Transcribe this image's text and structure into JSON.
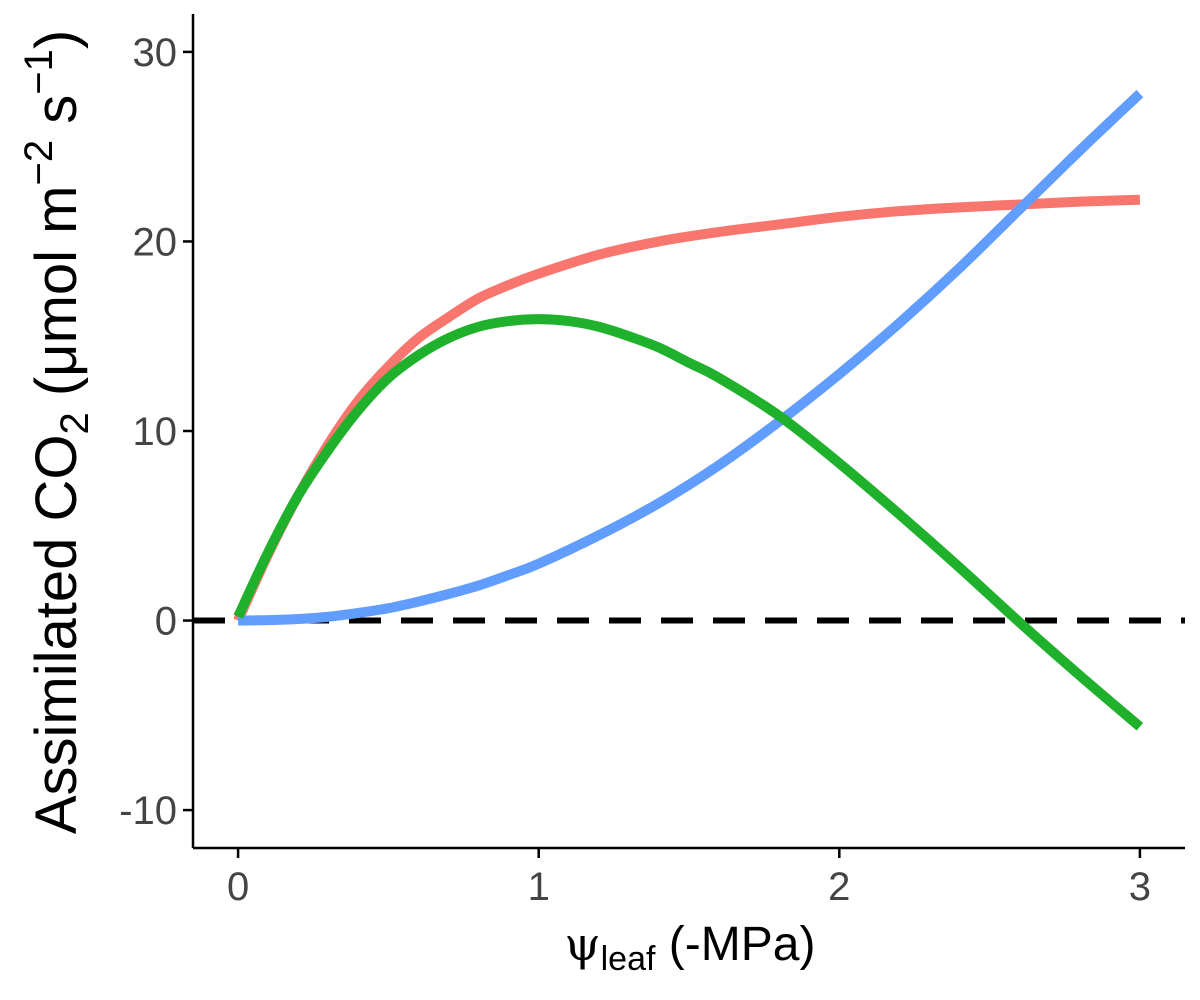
{
  "chart_data": {
    "type": "line",
    "title": "",
    "xlabel": {
      "symbol": "ψ",
      "subscript": "leaf",
      "unit": "(-MPa)"
    },
    "ylabel": {
      "prefix": "Assimilated CO",
      "subscript": "2",
      "units_open": "(μmol m",
      "exp1": "−2",
      "units_mid": " s",
      "exp2": "−1",
      "units_close": ")"
    },
    "xlim": [
      -0.15,
      3.15
    ],
    "ylim": [
      -12,
      32
    ],
    "x_ticks": [
      "0",
      "1",
      "2",
      "3"
    ],
    "y_ticks": [
      "-10",
      "0",
      "10",
      "20",
      "30"
    ],
    "grid": false,
    "legend": "none",
    "reference_line": {
      "y": 0,
      "style": "dashed",
      "color": "#000000"
    },
    "series": [
      {
        "color": "#F8766D",
        "x": [
          0,
          0.1,
          0.2,
          0.3,
          0.4,
          0.5,
          0.6,
          0.7,
          0.8,
          0.9,
          1.0,
          1.2,
          1.4,
          1.6,
          1.8,
          2.0,
          2.2,
          2.4,
          2.6,
          2.8,
          3.0
        ],
        "y": [
          0,
          3.5,
          6.6,
          9.3,
          11.6,
          13.4,
          14.9,
          16.0,
          17.0,
          17.7,
          18.3,
          19.3,
          20.0,
          20.5,
          20.9,
          21.3,
          21.6,
          21.8,
          21.95,
          22.1,
          22.2
        ]
      },
      {
        "color": "#619CFF",
        "x": [
          0,
          0.1,
          0.2,
          0.3,
          0.4,
          0.5,
          0.6,
          0.7,
          0.8,
          0.9,
          1.0,
          1.2,
          1.4,
          1.6,
          1.8,
          2.0,
          2.2,
          2.4,
          2.6,
          2.8,
          3.0
        ],
        "y": [
          0,
          0.02,
          0.08,
          0.2,
          0.4,
          0.65,
          1.0,
          1.4,
          1.85,
          2.4,
          3.0,
          4.5,
          6.2,
          8.2,
          10.5,
          13.0,
          15.7,
          18.6,
          21.7,
          24.8,
          27.8
        ]
      },
      {
        "color": "#1FB12B",
        "x": [
          0,
          0.1,
          0.2,
          0.3,
          0.4,
          0.5,
          0.6,
          0.7,
          0.8,
          0.9,
          1.0,
          1.1,
          1.2,
          1.3,
          1.4,
          1.5,
          1.6,
          1.8,
          2.0,
          2.2,
          2.4,
          2.6,
          2.8,
          3.0
        ],
        "y": [
          0.2,
          3.6,
          6.6,
          9.0,
          11.1,
          12.8,
          14.0,
          14.9,
          15.5,
          15.8,
          15.9,
          15.8,
          15.5,
          15.0,
          14.4,
          13.6,
          12.8,
          10.8,
          8.3,
          5.6,
          2.8,
          -0.1,
          -2.9,
          -5.6
        ]
      }
    ]
  }
}
